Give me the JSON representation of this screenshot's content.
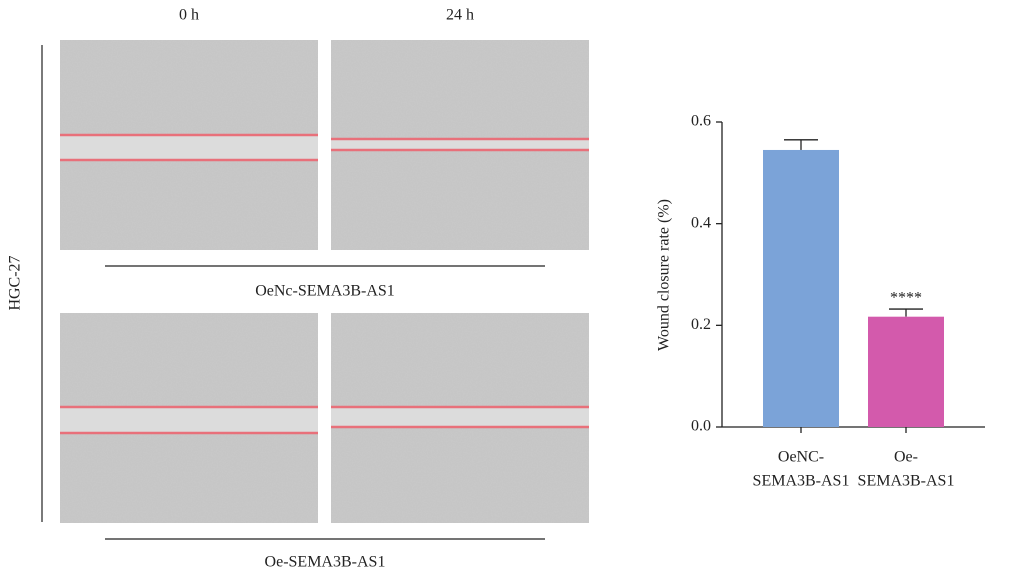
{
  "figure": {
    "columns": [
      "0 h",
      "24 h"
    ],
    "row_label": "HGC-27",
    "groups": [
      "OeNc-SEMA3B-AS1",
      "Oe-SEMA3B-AS1"
    ]
  },
  "chart_data": {
    "type": "bar",
    "y_label": "Wound closure rate (%)",
    "categories": [
      [
        "OeNC-",
        "SEMA3B-AS1"
      ],
      [
        "Oe-",
        "SEMA3B-AS1"
      ]
    ],
    "values": [
      0.545,
      0.217
    ],
    "errors": [
      0.02,
      0.015
    ],
    "colors": [
      "#7ba3d8",
      "#d35aac"
    ],
    "significance": [
      null,
      "****"
    ],
    "ylim": [
      0,
      0.6
    ],
    "yticks": [
      {
        "value": 0,
        "label": "0.0"
      },
      0.2,
      0.4,
      0.6
    ]
  }
}
